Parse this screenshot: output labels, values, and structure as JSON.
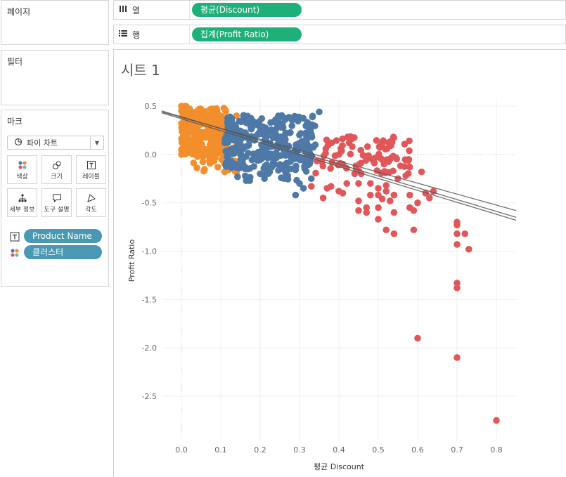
{
  "left_pane": {
    "pages_title": "페이지",
    "filters_title": "필터",
    "marks_title": "마크",
    "mark_type": "파이 차트",
    "buttons": [
      {
        "label": "색상",
        "icon": "color-dots-icon"
      },
      {
        "label": "크기",
        "icon": "size-icon"
      },
      {
        "label": "레이블",
        "icon": "label-icon"
      },
      {
        "label": "세부 정보",
        "icon": "detail-icon"
      },
      {
        "label": "도구 설명",
        "icon": "tooltip-icon"
      },
      {
        "label": "각도",
        "icon": "angle-icon"
      }
    ],
    "fields": [
      {
        "name": "Product Name",
        "icon": "label-field-icon"
      },
      {
        "name": "클러스터",
        "icon": "color-field-icon"
      }
    ]
  },
  "shelves": {
    "columns": {
      "label": "열",
      "icon": "columns-icon",
      "pill": "평균(Discount)"
    },
    "rows": {
      "label": "행",
      "icon": "rows-icon",
      "pill": "집계(Profit Ratio)"
    }
  },
  "sheet": {
    "title": "시트 1"
  },
  "colors": {
    "orange": "#f28e2b",
    "blue": "#4e79a7",
    "red": "#e15759",
    "pill_green": "#1fb07a",
    "pill_teal": "#4a98b4",
    "trend": "#555555"
  },
  "chart_data": {
    "type": "scatter",
    "xlabel": "평균 Discount",
    "ylabel": "Profit Ratio",
    "xlim": [
      -0.05,
      0.85
    ],
    "ylim": [
      -2.95,
      0.58
    ],
    "x_ticks": [
      "0.0",
      "0.1",
      "0.2",
      "0.3",
      "0.4",
      "0.5",
      "0.6",
      "0.7",
      "0.8"
    ],
    "x_tick_values": [
      0.0,
      0.1,
      0.2,
      0.3,
      0.4,
      0.5,
      0.6,
      0.7,
      0.8
    ],
    "y_ticks": [
      "0.5",
      "0.0",
      "-0.5",
      "-1.0",
      "-1.5",
      "-2.0",
      "-2.5"
    ],
    "y_tick_values": [
      0.5,
      0.0,
      -0.5,
      -1.0,
      -1.5,
      -2.0,
      -2.5
    ],
    "grid": true,
    "trend_lines": [
      {
        "x": [
          -0.05,
          0.85
        ],
        "y": [
          0.44,
          -0.58
        ]
      },
      {
        "x": [
          -0.05,
          0.85
        ],
        "y": [
          0.45,
          -0.65
        ]
      },
      {
        "x": [
          -0.05,
          0.85
        ],
        "y": [
          0.43,
          -0.68
        ]
      }
    ],
    "series": [
      {
        "color": "orange",
        "clouds": [
          {
            "x": [
              0.0,
              0.015
            ],
            "y": [
              0.0,
              0.5
            ],
            "n": 60
          },
          {
            "x": [
              0.01,
              0.12
            ],
            "y": [
              0.0,
              0.48
            ],
            "n": 230
          },
          {
            "x": [
              0.03,
              0.15
            ],
            "y": [
              -0.18,
              0.12
            ],
            "n": 60
          }
        ],
        "points": [
          [
            0.0,
            0.5
          ],
          [
            0.0,
            0.45
          ],
          [
            0.0,
            0.05
          ],
          [
            0.0,
            0.0
          ],
          [
            0.11,
            -0.18
          ],
          [
            0.12,
            -0.16
          ],
          [
            0.14,
            0.4
          ]
        ]
      },
      {
        "color": "blue",
        "clouds": [
          {
            "x": [
              0.11,
              0.34
            ],
            "y": [
              -0.15,
              0.42
            ],
            "n": 280
          },
          {
            "x": [
              0.14,
              0.32
            ],
            "y": [
              -0.28,
              0.0
            ],
            "n": 40
          }
        ],
        "points": [
          [
            0.35,
            0.44
          ],
          [
            0.29,
            -0.42
          ],
          [
            0.3,
            -0.3
          ],
          [
            0.31,
            -0.35
          ],
          [
            0.33,
            -0.25
          ],
          [
            0.2,
            -0.2
          ],
          [
            0.22,
            -0.18
          ],
          [
            0.25,
            -0.15
          ],
          [
            0.32,
            0.3
          ],
          [
            0.33,
            0.2
          ],
          [
            0.34,
            0.1
          ],
          [
            0.27,
            -0.22
          ]
        ]
      },
      {
        "color": "red",
        "clouds": [
          {
            "x": [
              0.34,
              0.58
            ],
            "y": [
              -0.2,
              0.22
            ],
            "n": 90
          }
        ],
        "points": [
          [
            0.33,
            -0.33
          ],
          [
            0.37,
            -0.35
          ],
          [
            0.38,
            -0.33
          ],
          [
            0.36,
            -0.45
          ],
          [
            0.4,
            -0.38
          ],
          [
            0.41,
            -0.4
          ],
          [
            0.42,
            -0.3
          ],
          [
            0.41,
            -0.1
          ],
          [
            0.4,
            0.0
          ],
          [
            0.44,
            -0.2
          ],
          [
            0.45,
            -0.3
          ],
          [
            0.45,
            -0.48
          ],
          [
            0.45,
            -0.58
          ],
          [
            0.47,
            -0.55
          ],
          [
            0.47,
            -0.6
          ],
          [
            0.48,
            -0.3
          ],
          [
            0.48,
            -0.42
          ],
          [
            0.5,
            -0.35
          ],
          [
            0.5,
            -0.42
          ],
          [
            0.5,
            -0.55
          ],
          [
            0.5,
            -0.67
          ],
          [
            0.51,
            -0.46
          ],
          [
            0.52,
            -0.38
          ],
          [
            0.52,
            -0.32
          ],
          [
            0.53,
            -0.48
          ],
          [
            0.54,
            -0.42
          ],
          [
            0.54,
            -0.6
          ],
          [
            0.52,
            -0.78
          ],
          [
            0.54,
            -0.82
          ],
          [
            0.55,
            -0.25
          ],
          [
            0.57,
            -0.22
          ],
          [
            0.58,
            -0.42
          ],
          [
            0.59,
            -0.58
          ],
          [
            0.59,
            -0.78
          ],
          [
            0.6,
            -0.5
          ],
          [
            0.61,
            -0.18
          ],
          [
            0.62,
            -0.4
          ],
          [
            0.63,
            -0.45
          ],
          [
            0.64,
            -0.38
          ],
          [
            0.58,
            -0.55
          ],
          [
            0.7,
            -0.7
          ],
          [
            0.7,
            -0.73
          ],
          [
            0.7,
            -0.82
          ],
          [
            0.72,
            -0.82
          ],
          [
            0.7,
            -0.93
          ],
          [
            0.73,
            -0.98
          ],
          [
            0.7,
            -1.33
          ],
          [
            0.7,
            -1.38
          ],
          [
            0.6,
            -1.9
          ],
          [
            0.7,
            -2.1
          ],
          [
            0.8,
            -2.75
          ]
        ]
      }
    ]
  }
}
